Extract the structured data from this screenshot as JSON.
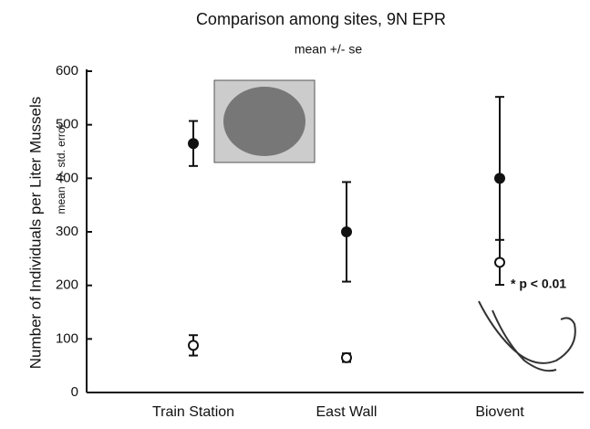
{
  "chart_data": {
    "type": "errorbar",
    "title": "Comparison among sites, 9N EPR",
    "subtitle": "mean +/- se",
    "y_label": "Number of Individuals per Liter Mussels",
    "y_sublabel": "mean +/- std. error",
    "annotation": "* p < 0.01",
    "categories": [
      "Train Station",
      "East Wall",
      "Biovent"
    ],
    "series": [
      {
        "color": "#111111",
        "marker": "filled",
        "values": [
          465,
          300,
          400
        ],
        "errors": [
          42,
          93,
          152
        ]
      },
      {
        "color": "#111111",
        "marker": "open",
        "values": [
          88,
          65,
          243
        ],
        "errors": [
          19,
          8,
          42
        ]
      }
    ],
    "ylim": [
      0,
      600
    ],
    "yticks": [
      0,
      100,
      200,
      300,
      400,
      500,
      600
    ]
  }
}
